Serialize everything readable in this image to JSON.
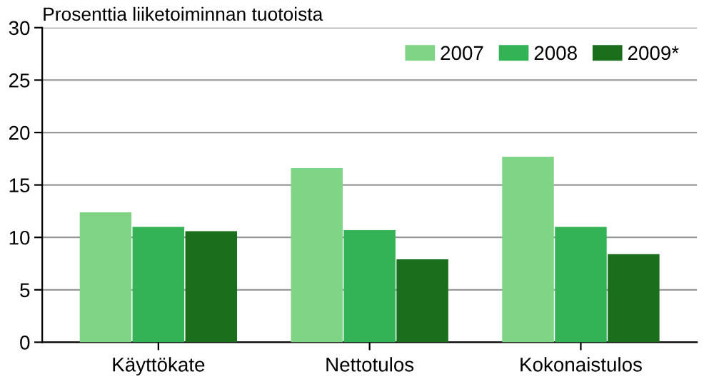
{
  "chart_data": {
    "type": "bar",
    "ylabel": "Prosenttia liiketoiminnan tuotoista",
    "categories": [
      "Käyttökate",
      "Nettotulos",
      "Kokonaistulos"
    ],
    "series": [
      {
        "name": "2007",
        "color": "#7fd485",
        "values": [
          12.4,
          16.6,
          17.7
        ]
      },
      {
        "name": "2008",
        "color": "#33b356",
        "values": [
          11.0,
          10.7,
          11.0
        ]
      },
      {
        "name": "2009*",
        "color": "#1b6e1b",
        "values": [
          10.6,
          7.9,
          8.4
        ]
      }
    ],
    "ylim": [
      0,
      30
    ],
    "yticks": [
      0,
      5,
      10,
      15,
      20,
      25,
      30
    ],
    "grid": "y",
    "legend": "top right"
  }
}
